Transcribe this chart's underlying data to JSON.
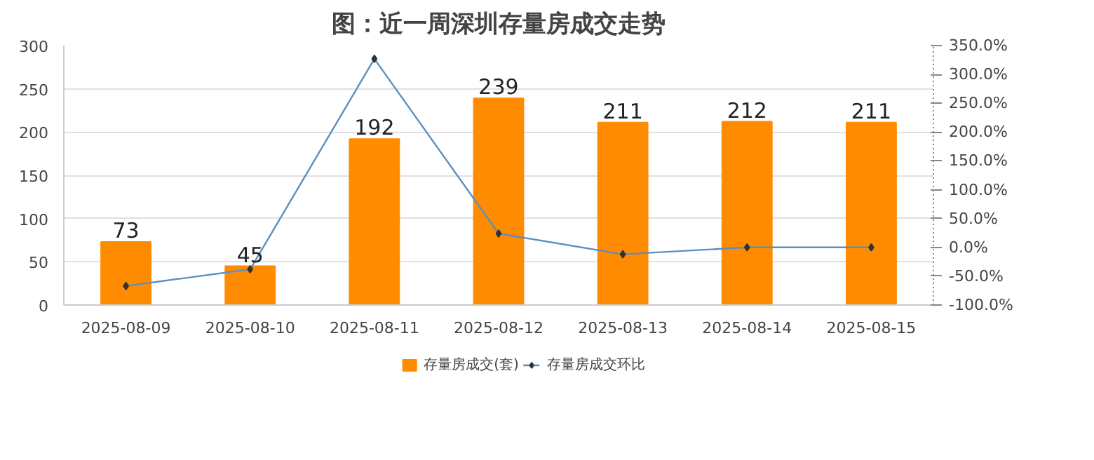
{
  "chart_data": {
    "type": "bar",
    "title": "图：近一周深圳存量房成交走势",
    "categories": [
      "2025-08-09",
      "2025-08-10",
      "2025-08-11",
      "2025-08-12",
      "2025-08-13",
      "2025-08-14",
      "2025-08-15"
    ],
    "series": [
      {
        "name": "存量房成交(套)",
        "color": "#ff8c00",
        "values": [
          73,
          45,
          192,
          239,
          211,
          212,
          211
        ],
        "value_labels": [
          "73",
          "45",
          "192",
          "239",
          "211",
          "212",
          "211"
        ]
      },
      {
        "name": "存量房成交环比",
        "type": "line",
        "axis": "y2",
        "color": "#5b8fc0",
        "values": [
          -67,
          -38,
          327,
          24,
          -12,
          0,
          0
        ]
      }
    ],
    "ylim": [
      0,
      300
    ],
    "yticks": [
      0,
      50,
      100,
      150,
      200,
      250,
      300
    ],
    "y2lim": [
      -100,
      350
    ],
    "y2ticks": [
      {
        "value": -100,
        "label": "-100.0%"
      },
      {
        "value": -50,
        "label": "-50.0%"
      },
      {
        "value": 0,
        "label": "0.0%"
      },
      {
        "value": 50,
        "label": "50.0%"
      },
      {
        "value": 100,
        "label": "100.0%"
      },
      {
        "value": 150,
        "label": "150.0%"
      },
      {
        "value": 200,
        "label": "200.0%"
      },
      {
        "value": 250,
        "label": "250.0%"
      },
      {
        "value": 300,
        "label": "300.0%"
      },
      {
        "value": 350,
        "label": "350.0%"
      }
    ],
    "grid": "y",
    "legend": "bottom",
    "marker": "diamond"
  }
}
